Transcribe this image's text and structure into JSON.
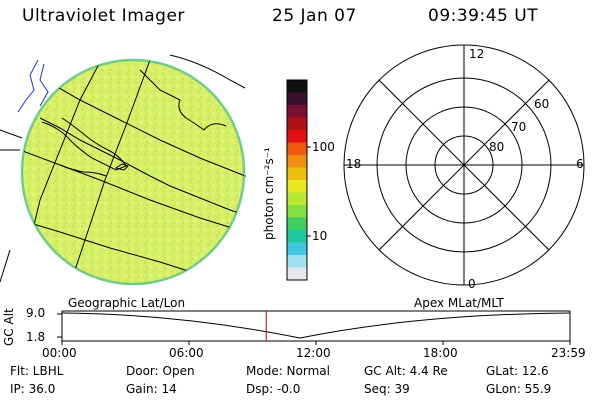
{
  "header": {
    "instrument": "Ultraviolet Imager",
    "date": "25 Jan 07",
    "time": "09:39:45 UT"
  },
  "colorbar": {
    "unit_label": "photon cm⁻²s⁻¹",
    "ticks": [
      "100",
      "10"
    ],
    "colors": [
      "#101010",
      "#3a1030",
      "#7a1030",
      "#b01018",
      "#e01010",
      "#f05a10",
      "#f08c10",
      "#f0c010",
      "#e8e820",
      "#b8e830",
      "#80e040",
      "#40d060",
      "#20c8a0",
      "#40c8e0",
      "#a0e0f0",
      "#e8e8f0"
    ]
  },
  "polar_plot": {
    "mlt_labels": [
      "12",
      "18",
      "6",
      "0"
    ],
    "lat_labels": [
      "60",
      "70",
      "80"
    ],
    "ring_latitudes": [
      60,
      70,
      80
    ]
  },
  "timeline": {
    "y_axis_label": "GC Alt",
    "y_ticks": [
      "9.0",
      "1.8"
    ],
    "left_caption": "Geographic Lat/Lon",
    "right_caption": "Apex MLat/MLT",
    "x_ticks": [
      "00:00",
      "06:00",
      "12:00",
      "18:00",
      "23:59"
    ],
    "marker_time_fraction": 0.402,
    "marker_color": "#c00000"
  },
  "status": {
    "filter": "Flt: LBHL",
    "ip": "IP: 36.0",
    "door": "Door: Open",
    "gain": "Gain: 14",
    "mode": "Mode: Normal",
    "dsp": "Dsp:  -0.0",
    "gc_alt": "GC Alt: 4.4 Re",
    "seq": "Seq: 39",
    "glat": "GLat: 12.6",
    "glon": "GLon: 55.9"
  },
  "map_colors": {
    "disk_fill": "#d8f068",
    "disk_mottle": "#c8e858",
    "disk_edge": "#7ad07a",
    "ocean_lines": "#2030c0"
  }
}
